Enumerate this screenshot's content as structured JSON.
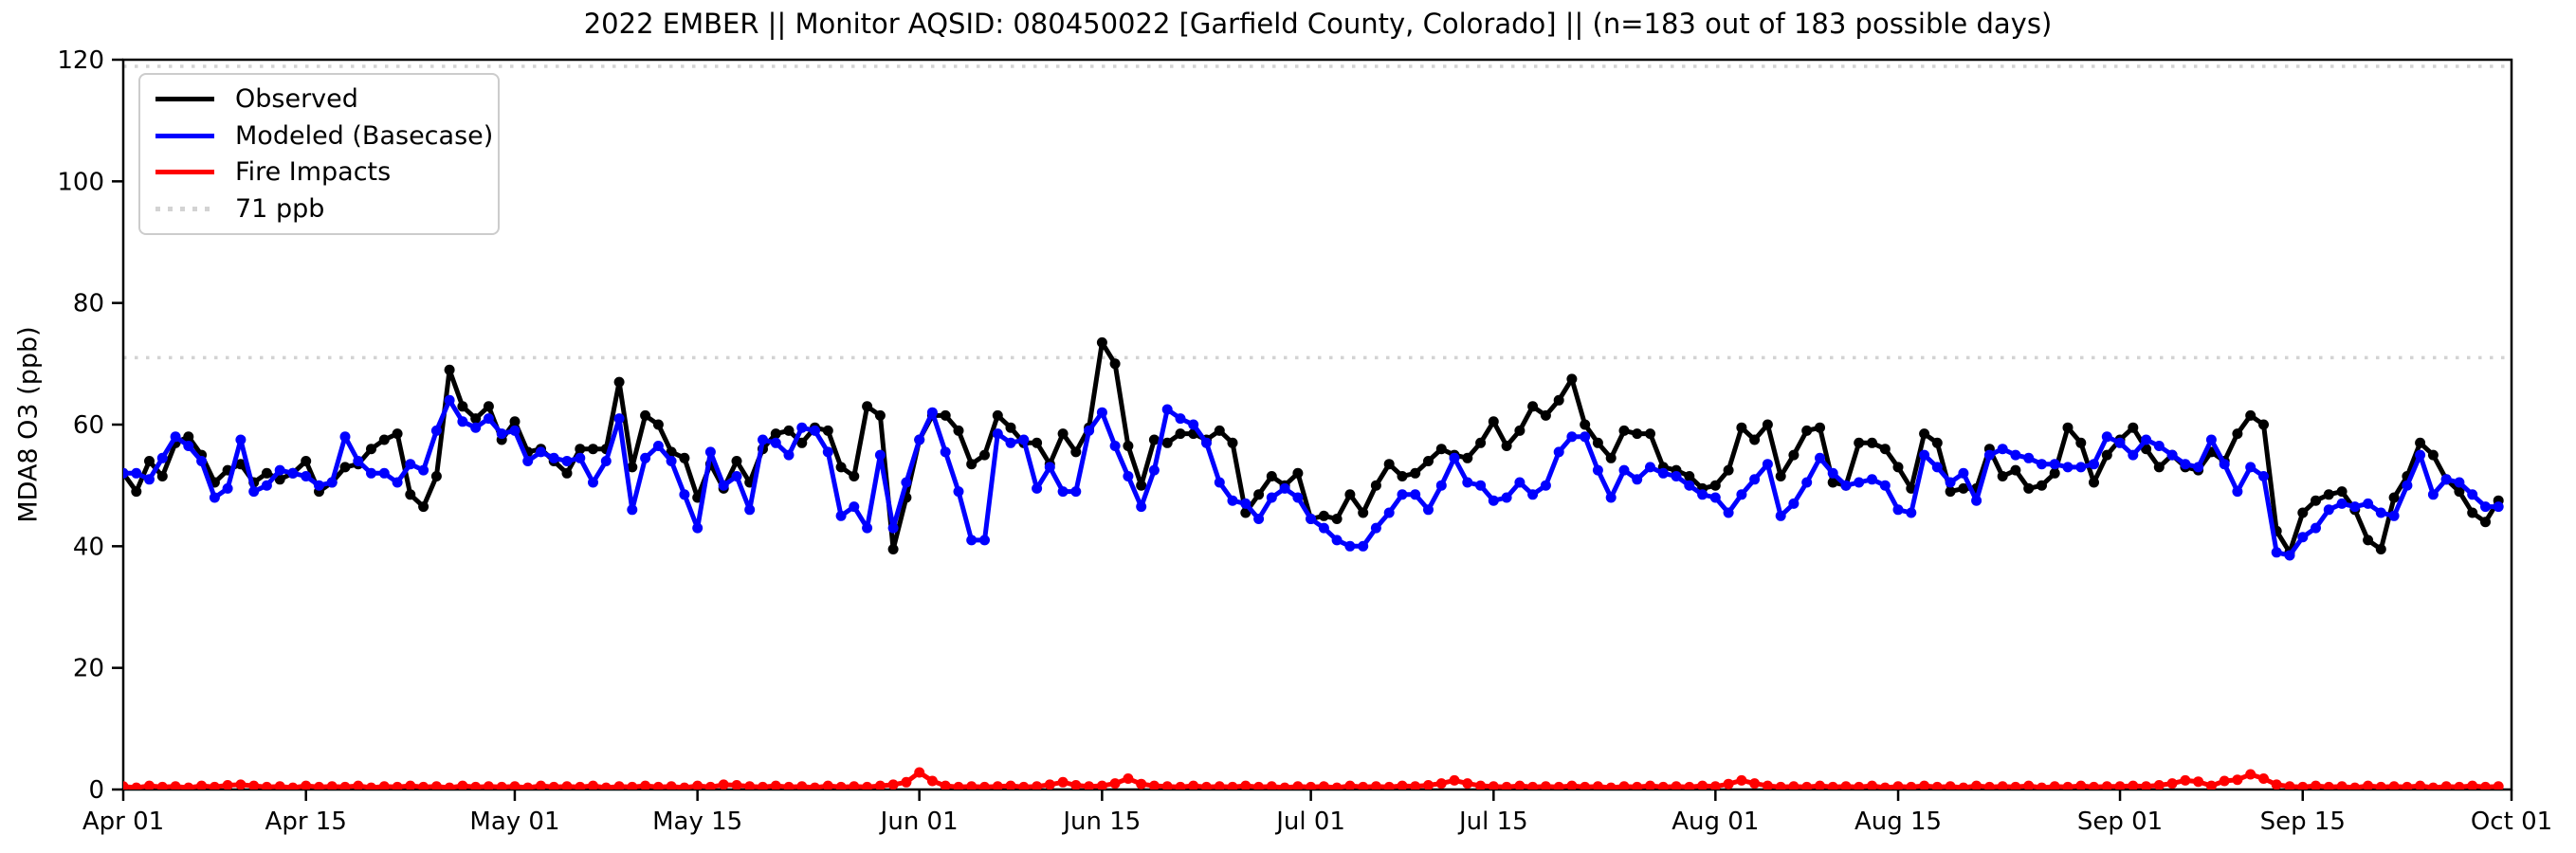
{
  "figure": {
    "background": "#ffffff",
    "accent_colors": {
      "observed": "#000000",
      "modeled": "#0000ff",
      "fire": "#ff0000",
      "threshold": "#d3d3d3"
    }
  },
  "legend": {
    "entries": [
      {
        "label": "Observed",
        "color": "#000000",
        "line": "solid"
      },
      {
        "label": "Modeled (Basecase)",
        "color": "#0000ff",
        "line": "solid"
      },
      {
        "label": "Fire Impacts",
        "color": "#ff0000",
        "line": "solid"
      },
      {
        "label": "71 ppb",
        "color": "#d3d3d3",
        "line": "dotted"
      }
    ]
  },
  "chart_data": {
    "type": "line",
    "title": "2022 EMBER || Monitor AQSID: 080450022 [Garfield County, Colorado] || (n=183 out of 183 possible days)",
    "xlabel": "",
    "ylabel": "MDA8 O3 (ppb)",
    "ylim": [
      0,
      120
    ],
    "yticks": [
      0,
      20,
      40,
      60,
      80,
      100,
      120
    ],
    "x_range_days": 183,
    "x_start": "Apr 01",
    "x_end": "Oct 01",
    "xticks": [
      {
        "day": 0,
        "label": "Apr 01"
      },
      {
        "day": 14,
        "label": "Apr 15"
      },
      {
        "day": 30,
        "label": "May 01"
      },
      {
        "day": 44,
        "label": "May 15"
      },
      {
        "day": 61,
        "label": "Jun 01"
      },
      {
        "day": 75,
        "label": "Jun 15"
      },
      {
        "day": 91,
        "label": "Jul 01"
      },
      {
        "day": 105,
        "label": "Jul 15"
      },
      {
        "day": 122,
        "label": "Aug 01"
      },
      {
        "day": 136,
        "label": "Aug 15"
      },
      {
        "day": 153,
        "label": "Sep 01"
      },
      {
        "day": 167,
        "label": "Sep 15"
      },
      {
        "day": 183,
        "label": "Oct 01"
      }
    ],
    "grid": false,
    "legend_position": "upper left",
    "threshold_lines": [
      {
        "value": 71,
        "label": "71 ppb",
        "color": "#d3d3d3",
        "style": "dotted"
      },
      {
        "value": 118.9,
        "label": "",
        "color": "#d3d3d3",
        "style": "dotted"
      }
    ],
    "series": [
      {
        "name": "Observed",
        "color": "#000000",
        "marker": "circle",
        "values": [
          52,
          49,
          54,
          51.5,
          57,
          58,
          55,
          50.5,
          52.5,
          53.5,
          50.5,
          52,
          51,
          52,
          54,
          49,
          50.5,
          53,
          53.5,
          56,
          57.5,
          58.5,
          48.5,
          46.5,
          51.5,
          69,
          63,
          61,
          63,
          57.5,
          60.5,
          55.5,
          56,
          54,
          52,
          56,
          56,
          56,
          67,
          53,
          61.5,
          60,
          55.5,
          54.5,
          48,
          53.5,
          49.5,
          54,
          50.5,
          56,
          58.5,
          59,
          57,
          59.5,
          59,
          53,
          51.5,
          63,
          61.5,
          39.5,
          48,
          57.5,
          61.5,
          61.5,
          59,
          53.5,
          55,
          61.5,
          59.5,
          57,
          57,
          53.5,
          58.5,
          55.5,
          59.5,
          73.5,
          70,
          56.5,
          50,
          57.5,
          57,
          58.5,
          58.5,
          57.5,
          59,
          57,
          45.5,
          48.5,
          51.5,
          50,
          52,
          44.5,
          45,
          44.5,
          48.5,
          45.5,
          50,
          53.5,
          51.5,
          52,
          54,
          56,
          55,
          54.5,
          57,
          60.5,
          56.5,
          59,
          63,
          61.5,
          64,
          67.5,
          60,
          57,
          54.5,
          59,
          58.5,
          58.5,
          53,
          52.5,
          51.5,
          49.5,
          50,
          52.5,
          59.5,
          57.5,
          60,
          51.5,
          55,
          59,
          59.5,
          50.5,
          50,
          57,
          57,
          56,
          53,
          49.5,
          58.5,
          57,
          49,
          49.5,
          49.5,
          56,
          51.5,
          52.5,
          49.5,
          50,
          52,
          59.5,
          57,
          50.5,
          55,
          57.5,
          59.5,
          56,
          53,
          55,
          53,
          52.5,
          55.5,
          54,
          58.5,
          61.5,
          60,
          42.5,
          39,
          45.5,
          47.5,
          48.5,
          49,
          46,
          41,
          39.5,
          48,
          51.5,
          57,
          55,
          51,
          49,
          45.5,
          44,
          47.5
        ]
      },
      {
        "name": "Modeled (Basecase)",
        "color": "#0000ff",
        "marker": "circle",
        "values": [
          52,
          52,
          51,
          54.5,
          58,
          56.5,
          54,
          48,
          49.5,
          57.5,
          49,
          50,
          52.5,
          52,
          51.5,
          50,
          50.5,
          58,
          54,
          52,
          52,
          50.5,
          53.5,
          52.5,
          59,
          64,
          60.5,
          59.5,
          61,
          58.5,
          59,
          54,
          55.5,
          54.5,
          54,
          54.5,
          50.5,
          54,
          61,
          46,
          54.5,
          56.5,
          54,
          48.5,
          43,
          55.5,
          50,
          51.5,
          46,
          57.5,
          57,
          55,
          59.5,
          59,
          55.5,
          45,
          46.5,
          43,
          55,
          43,
          50.5,
          57.5,
          62,
          55.5,
          49,
          41,
          41,
          58.5,
          57,
          57.5,
          49.5,
          53,
          49,
          49,
          59,
          62,
          56.5,
          51.5,
          46.5,
          52.5,
          62.5,
          61,
          60,
          57,
          50.5,
          47.5,
          47,
          44.5,
          48,
          49.5,
          48,
          44.5,
          43,
          41,
          40,
          40,
          43,
          45.5,
          48.5,
          48.5,
          46,
          50,
          54.5,
          50.5,
          50,
          47.5,
          48,
          50.5,
          48.5,
          50,
          55.5,
          58,
          58,
          52.5,
          48,
          52.5,
          51,
          53,
          52,
          51.5,
          50,
          48.5,
          48,
          45.5,
          48.5,
          51,
          53.5,
          45,
          47,
          50.5,
          54.5,
          52,
          50,
          50.5,
          51,
          50,
          46,
          45.5,
          55,
          53,
          50.5,
          52,
          47.5,
          55,
          56,
          55,
          54.5,
          53.5,
          53.5,
          53,
          53,
          53.5,
          58,
          57,
          55,
          57.5,
          56.5,
          55,
          53.5,
          53,
          57.5,
          53.5,
          49,
          53,
          51.5,
          39,
          38.5,
          41.5,
          43,
          46,
          47,
          46.5,
          47,
          45.5,
          45,
          50,
          55,
          48.5,
          51,
          50.5,
          48.5,
          46.5,
          46.5
        ]
      },
      {
        "name": "Fire Impacts",
        "color": "#ff0000",
        "marker": "circle",
        "values": [
          0.5,
          0.3,
          0.6,
          0.4,
          0.5,
          0.3,
          0.6,
          0.4,
          0.7,
          0.8,
          0.6,
          0.4,
          0.5,
          0.3,
          0.6,
          0.4,
          0.5,
          0.4,
          0.6,
          0.3,
          0.5,
          0.4,
          0.6,
          0.4,
          0.5,
          0.3,
          0.6,
          0.4,
          0.5,
          0.4,
          0.5,
          0.3,
          0.6,
          0.4,
          0.5,
          0.4,
          0.6,
          0.3,
          0.5,
          0.4,
          0.6,
          0.4,
          0.5,
          0.3,
          0.6,
          0.4,
          0.8,
          0.7,
          0.5,
          0.4,
          0.6,
          0.4,
          0.5,
          0.3,
          0.6,
          0.4,
          0.5,
          0.4,
          0.6,
          0.8,
          1.2,
          2.8,
          1.4,
          0.6,
          0.4,
          0.5,
          0.4,
          0.5,
          0.6,
          0.4,
          0.5,
          0.8,
          1.2,
          0.7,
          0.5,
          0.6,
          1.0,
          1.8,
          0.9,
          0.6,
          0.5,
          0.4,
          0.6,
          0.4,
          0.5,
          0.4,
          0.6,
          0.4,
          0.5,
          0.3,
          0.5,
          0.4,
          0.5,
          0.3,
          0.6,
          0.4,
          0.5,
          0.4,
          0.6,
          0.5,
          0.7,
          1.0,
          1.5,
          1.0,
          0.6,
          0.5,
          0.4,
          0.6,
          0.4,
          0.5,
          0.4,
          0.6,
          0.4,
          0.5,
          0.3,
          0.5,
          0.4,
          0.6,
          0.4,
          0.5,
          0.4,
          0.6,
          0.5,
          0.9,
          1.5,
          1.0,
          0.6,
          0.4,
          0.5,
          0.4,
          0.6,
          0.4,
          0.5,
          0.4,
          0.6,
          0.3,
          0.5,
          0.4,
          0.6,
          0.4,
          0.5,
          0.3,
          0.6,
          0.4,
          0.5,
          0.4,
          0.6,
          0.3,
          0.5,
          0.4,
          0.6,
          0.4,
          0.5,
          0.5,
          0.6,
          0.5,
          0.7,
          1.0,
          1.5,
          1.3,
          0.6,
          1.4,
          1.6,
          2.5,
          1.8,
          0.8,
          0.5,
          0.4,
          0.6,
          0.4,
          0.5,
          0.3,
          0.6,
          0.4,
          0.5,
          0.4,
          0.6,
          0.3,
          0.5,
          0.4,
          0.6,
          0.4,
          0.5
        ]
      }
    ]
  }
}
